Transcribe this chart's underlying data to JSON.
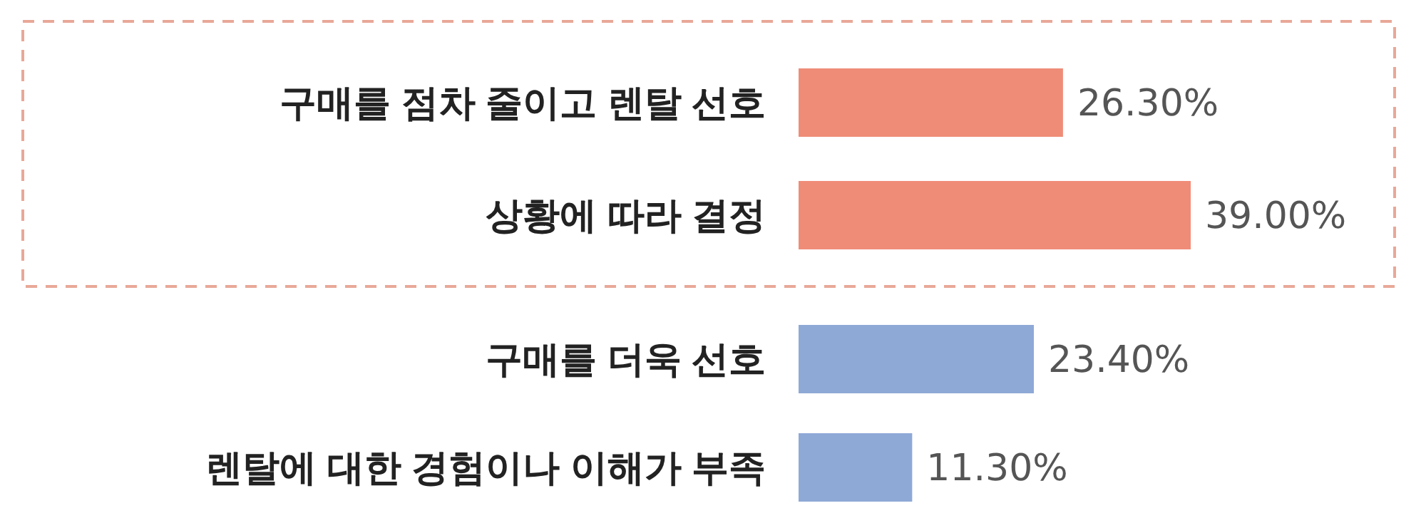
{
  "chart_data": {
    "type": "bar",
    "orientation": "horizontal",
    "categories": [
      "구매를 점차 줄이고 렌탈 선호",
      "상황에 따라 결정",
      "구매를 더욱 선호",
      "렌탈에 대한 경험이나 이해가 부족"
    ],
    "values": [
      26.3,
      39.0,
      23.4,
      11.3
    ],
    "colors": [
      "#ef8c78",
      "#ef8c78",
      "#8ea9d6",
      "#8ea9d6"
    ],
    "value_labels": [
      "26.30%",
      "39.00%",
      "23.40%",
      "11.30%"
    ]
  }
}
